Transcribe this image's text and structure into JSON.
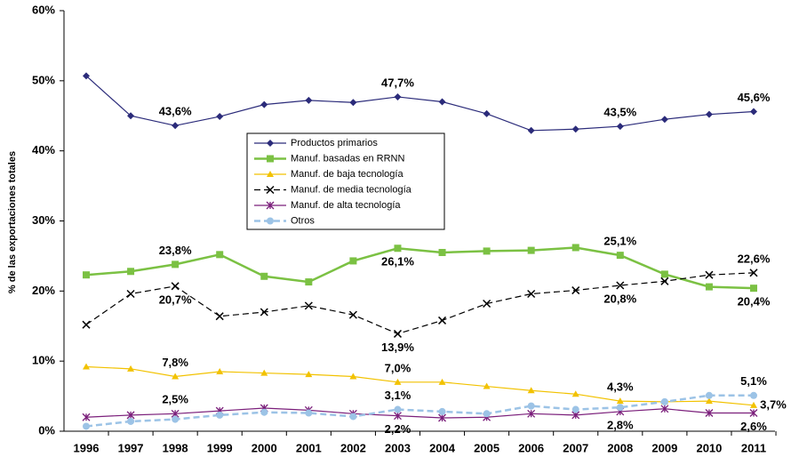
{
  "chart_data": {
    "type": "line",
    "y_label": "% de las exportaciones totales",
    "x": [
      "1996",
      "1997",
      "1998",
      "1999",
      "2000",
      "2001",
      "2002",
      "2003",
      "2004",
      "2005",
      "2006",
      "2007",
      "2008",
      "2009",
      "2010",
      "2011"
    ],
    "ylim": [
      0,
      60
    ],
    "yticks": [
      {
        "value": 0,
        "label": "0%"
      },
      {
        "value": 10,
        "label": "10%"
      },
      {
        "value": 20,
        "label": "20%"
      },
      {
        "value": 30,
        "label": "30%"
      },
      {
        "value": 40,
        "label": "40%"
      },
      {
        "value": 50,
        "label": "50%"
      },
      {
        "value": 60,
        "label": "60%"
      }
    ],
    "grid": false,
    "series": [
      {
        "name": "Productos primarios",
        "color": "#2b2b7a",
        "marker": "diamond",
        "dashed": false,
        "values": [
          50.7,
          45.0,
          43.6,
          44.9,
          46.6,
          47.2,
          46.9,
          47.7,
          47.0,
          45.3,
          42.9,
          43.1,
          43.5,
          44.5,
          45.2,
          45.6
        ],
        "value_labels": [
          null,
          null,
          "43,6%",
          null,
          null,
          null,
          null,
          "47,7%",
          null,
          null,
          null,
          null,
          "43,5%",
          null,
          null,
          "45,6%"
        ]
      },
      {
        "name": "Manuf. basadas en RRNN",
        "color": "#7bc143",
        "marker": "square",
        "dashed": false,
        "values": [
          22.3,
          22.8,
          23.8,
          25.2,
          22.1,
          21.3,
          24.3,
          26.1,
          25.5,
          25.7,
          25.8,
          26.2,
          25.1,
          22.4,
          20.6,
          20.4
        ],
        "value_labels": [
          null,
          null,
          "23,8%",
          null,
          null,
          null,
          null,
          "26,1%",
          null,
          null,
          null,
          null,
          "25,1%",
          null,
          null,
          "20,4%"
        ]
      },
      {
        "name": "Manuf. de baja tecnología",
        "color": "#f2c200",
        "marker": "triangle",
        "dashed": false,
        "values": [
          9.2,
          8.9,
          7.8,
          8.5,
          8.3,
          8.1,
          7.8,
          7.0,
          7.0,
          6.4,
          5.8,
          5.3,
          4.3,
          4.2,
          4.3,
          3.7
        ],
        "value_labels": [
          null,
          null,
          "7,8%",
          null,
          null,
          null,
          null,
          "7,0%",
          null,
          null,
          null,
          null,
          "4,3%",
          null,
          null,
          "3,7%"
        ]
      },
      {
        "name": "Manuf. de media tecnología",
        "color": "#000000",
        "marker": "x",
        "dashed": true,
        "values": [
          15.2,
          19.6,
          20.7,
          16.4,
          17.0,
          17.9,
          16.6,
          13.9,
          15.8,
          18.2,
          19.6,
          20.1,
          20.8,
          21.4,
          22.3,
          22.6
        ],
        "value_labels": [
          null,
          null,
          "20,7%",
          null,
          null,
          null,
          null,
          "13,9%",
          null,
          null,
          null,
          null,
          "20,8%",
          null,
          null,
          "22,6%"
        ]
      },
      {
        "name": "Manuf. de alta tecnología",
        "color": "#7b1f7b",
        "marker": "star",
        "dashed": false,
        "values": [
          2.0,
          2.3,
          2.5,
          2.9,
          3.3,
          3.0,
          2.5,
          2.2,
          1.9,
          2.0,
          2.5,
          2.3,
          2.8,
          3.2,
          2.6,
          2.6
        ],
        "value_labels": [
          null,
          null,
          "2,5%",
          null,
          null,
          null,
          null,
          "2,2%",
          null,
          null,
          null,
          null,
          "2,8%",
          null,
          null,
          "2,6%"
        ]
      },
      {
        "name": "Otros",
        "color": "#9cc3e6",
        "marker": "circle",
        "dashed": true,
        "values": [
          0.7,
          1.4,
          1.7,
          2.3,
          2.7,
          2.6,
          2.1,
          3.1,
          2.8,
          2.5,
          3.6,
          3.1,
          3.4,
          4.2,
          5.1,
          5.1
        ],
        "value_labels": [
          null,
          null,
          null,
          null,
          null,
          null,
          null,
          "3,1%",
          null,
          null,
          null,
          null,
          null,
          null,
          null,
          "5,1%"
        ]
      }
    ]
  }
}
